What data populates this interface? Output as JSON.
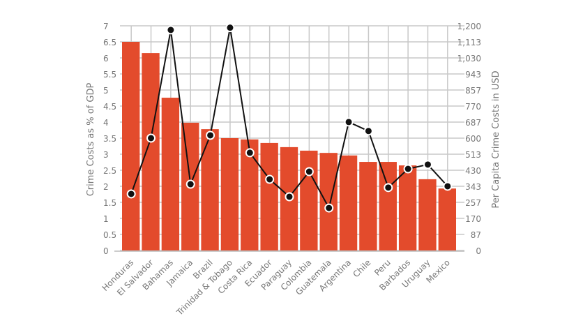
{
  "chart_data": {
    "type": "bar+line",
    "categories": [
      "Honduras",
      "El Salvador",
      "Bahamas",
      "Jamaica",
      "Brazil",
      "Trinidad & Tobago",
      "Costa Rica",
      "Ecuador",
      "Paraguay",
      "Colombia",
      "Guatemala",
      "Argentina",
      "Chile",
      "Peru",
      "Barbados",
      "Uruguay",
      "Mexico"
    ],
    "series": [
      {
        "type": "bar",
        "axis": "left",
        "color": "#e34b2c",
        "values": [
          6.5,
          6.15,
          4.76,
          3.98,
          3.78,
          3.5,
          3.46,
          3.35,
          3.22,
          3.11,
          3.04,
          2.96,
          2.76,
          2.76,
          2.65,
          2.22,
          1.93
        ]
      },
      {
        "type": "line",
        "axis": "right",
        "color": "#111111",
        "values": [
          302,
          600,
          1178,
          354,
          615,
          1190,
          522,
          380,
          287,
          421,
          227,
          686,
          638,
          336,
          436,
          459,
          343
        ]
      }
    ],
    "ylabel": "Crime Costs as % of GDP",
    "ylabel_right": "Per Capita Crime Costs in USD",
    "ylim": [
      0,
      7
    ],
    "ylim_right": [
      0,
      1200
    ],
    "yticks": [
      "0",
      "0.5",
      "1",
      "1.5",
      "2",
      "2.5",
      "3",
      "3.5",
      "4",
      "4.5",
      "5",
      "5.5",
      "6",
      "6.5",
      "7"
    ],
    "yticks_right": [
      "0",
      "87",
      "170",
      "257",
      "343",
      "430",
      "513",
      "600",
      "687",
      "770",
      "857",
      "943",
      "1,030",
      "1,113",
      "1,200"
    ],
    "grid": true
  }
}
